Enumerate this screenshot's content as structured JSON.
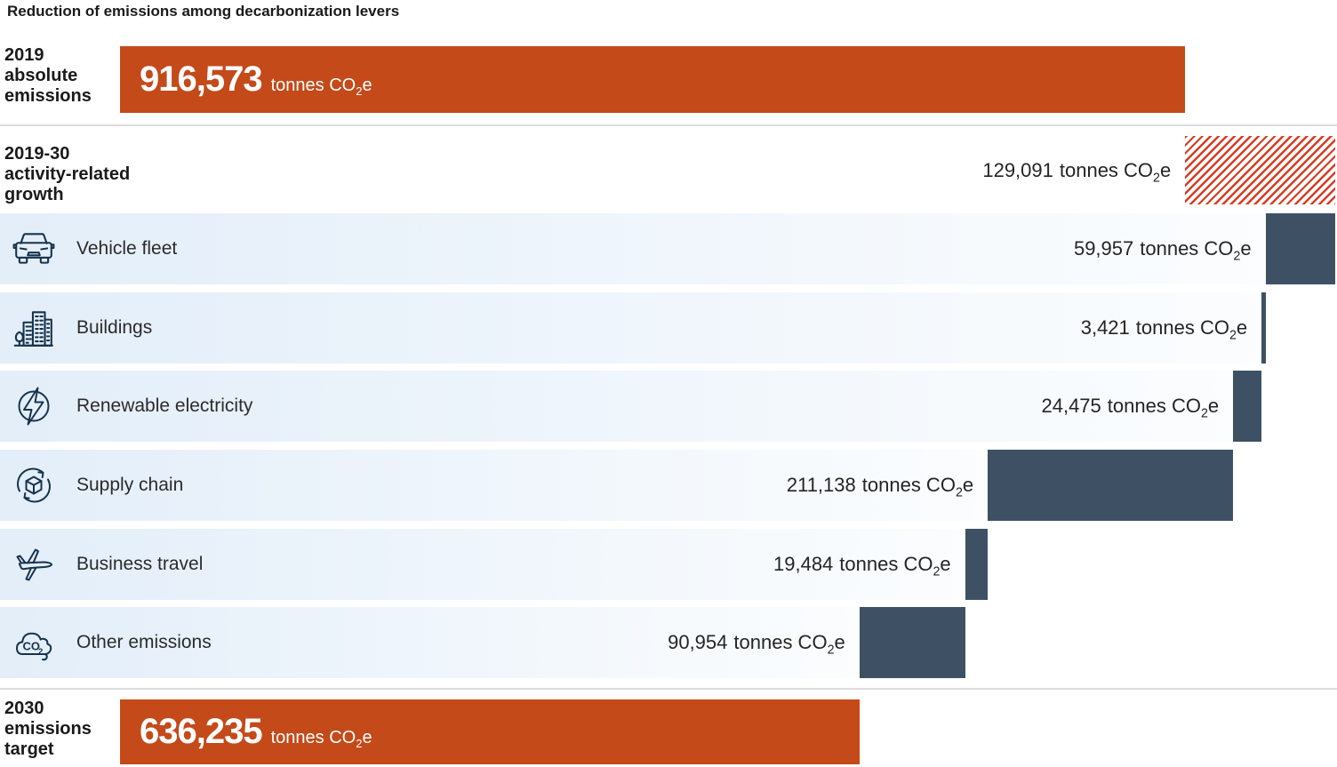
{
  "chart_data": {
    "type": "bar",
    "subtype": "waterfall",
    "title": "Reduction of emissions among decarbonization levers",
    "unit_label": "tonnes CO2e",
    "unit_prefix": "tonnes CO",
    "unit_sub": "2",
    "unit_suffix": "e",
    "start": {
      "label_lines": [
        "2019",
        "absolute",
        "emissions"
      ],
      "value": 916573,
      "display": "916,573"
    },
    "growth": {
      "label_lines": [
        "2019-30",
        "activity-related",
        "growth"
      ],
      "value": 129091,
      "display": "129,091",
      "direction": "increase",
      "bar_style": "red-diagonal-hatch"
    },
    "levers": [
      {
        "icon": "car-icon",
        "label": "Vehicle fleet",
        "value": 59957,
        "display": "59,957"
      },
      {
        "icon": "buildings-icon",
        "label": "Buildings",
        "value": 3421,
        "display": "3,421"
      },
      {
        "icon": "lightning-icon",
        "label": "Renewable electricity",
        "value": 24475,
        "display": "24,475"
      },
      {
        "icon": "cube-cycle-icon",
        "label": "Supply chain",
        "value": 211138,
        "display": "211,138"
      },
      {
        "icon": "airplane-icon",
        "label": "Business travel",
        "value": 19484,
        "display": "19,484"
      },
      {
        "icon": "co2-cloud-icon",
        "label": "Other emissions",
        "value": 90954,
        "display": "90,954"
      }
    ],
    "target": {
      "label_lines": [
        "2030",
        "emissions",
        "target"
      ],
      "value": 636235,
      "display": "636,235"
    },
    "colors": {
      "emission_bar": "#c44a1a",
      "hatch_stripe": "#d63c22",
      "lever_bar": "#3e5164",
      "row_bg_left": "#e3eef9",
      "row_bg_right": "#fbfdfe",
      "icon_stroke": "#16334e"
    },
    "layout_hints": {
      "grid": false,
      "legend": false,
      "orientation": "horizontal"
    }
  }
}
